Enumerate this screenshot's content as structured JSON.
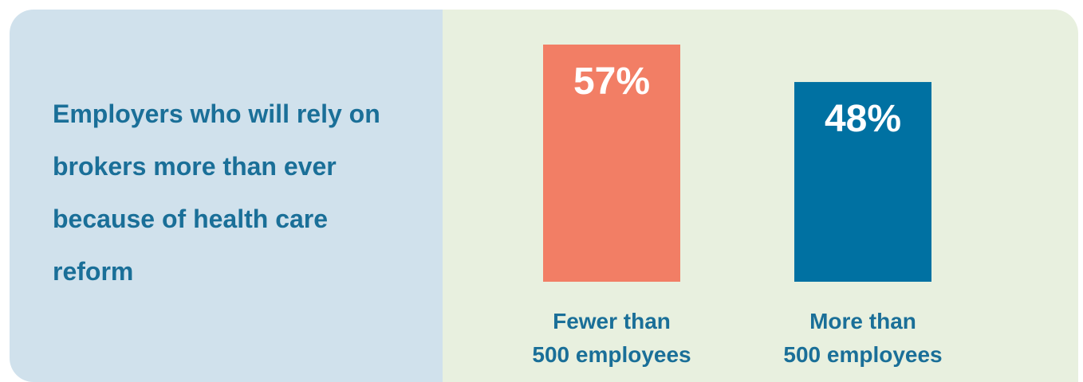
{
  "title": "Employers who will rely on brokers more than ever because of health care reform",
  "colors": {
    "left_panel_bg": "#d0e1ec",
    "right_panel_bg": "#e8f0df",
    "title_text": "#1a6f98",
    "bar_value_text": "#ffffff"
  },
  "chart_data": {
    "type": "bar",
    "categories": [
      [
        "Fewer than",
        "500 employees"
      ],
      [
        "More than",
        "500 employees"
      ]
    ],
    "values": [
      57,
      48
    ],
    "value_labels": [
      "57%",
      "48%"
    ],
    "bar_colors": [
      "#f27e65",
      "#0071a2"
    ],
    "ylim": [
      0,
      57
    ],
    "grid": false,
    "legend": "none"
  }
}
